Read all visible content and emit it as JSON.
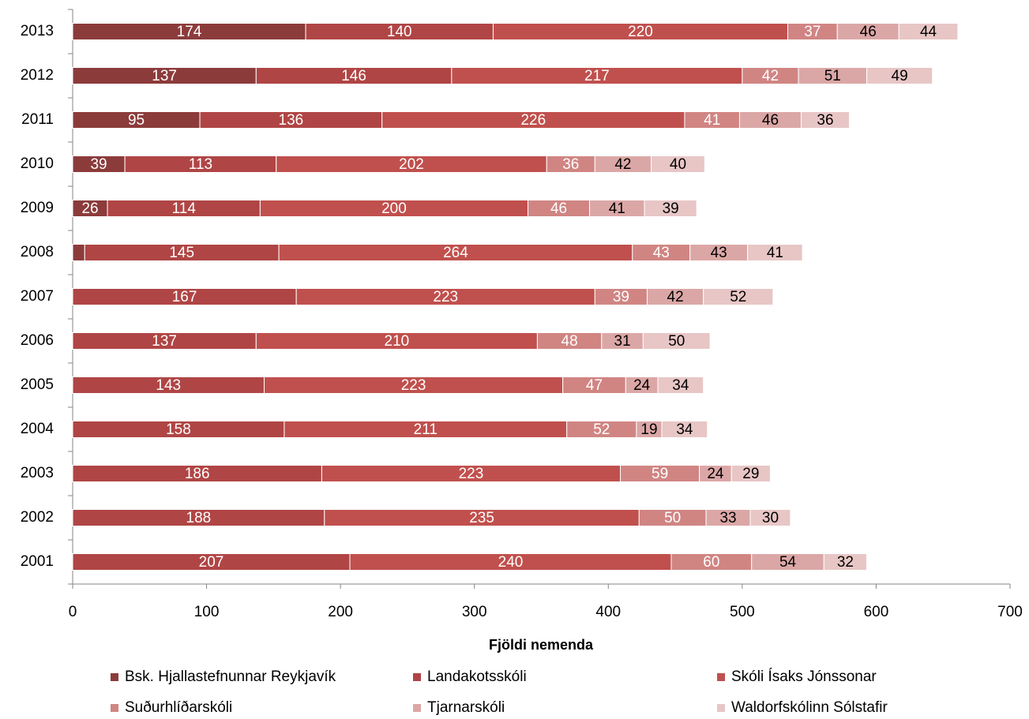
{
  "chart_data": {
    "type": "stacked_bar_horizontal",
    "x_label": "Fjöldi nemenda",
    "categories": [
      "2001",
      "2002",
      "2003",
      "2004",
      "2005",
      "2006",
      "2007",
      "2008",
      "2009",
      "2010",
      "2011",
      "2012",
      "2013"
    ],
    "series": [
      {
        "name": "Bsk. Hjallastefnunnar Reykjavík",
        "color": "#8c3b3b",
        "label_color": "#ffffff",
        "values": [
          null,
          null,
          null,
          null,
          null,
          null,
          null,
          9,
          26,
          39,
          95,
          137,
          174
        ],
        "value_labels": [
          null,
          null,
          null,
          null,
          null,
          null,
          null,
          null,
          "26",
          "39",
          "95",
          "137",
          "174"
        ]
      },
      {
        "name": "Landakotsskóli",
        "color": "#b04545",
        "label_color": "#ffffff",
        "values": [
          207,
          188,
          186,
          158,
          143,
          137,
          167,
          145,
          114,
          113,
          136,
          146,
          140
        ]
      },
      {
        "name": "Skóli Ísaks Jónssonar",
        "color": "#c0504d",
        "label_color": "#ffffff",
        "values": [
          240,
          235,
          223,
          211,
          223,
          210,
          223,
          264,
          200,
          202,
          226,
          217,
          220
        ]
      },
      {
        "name": "Suðurhlíðarskóli",
        "color": "#d08583",
        "label_color": "#ffffff",
        "values": [
          60,
          50,
          59,
          52,
          47,
          48,
          39,
          43,
          46,
          36,
          41,
          42,
          37
        ]
      },
      {
        "name": "Tjarnarskóli",
        "color": "#dba7a6",
        "label_color": "#000000",
        "values": [
          54,
          33,
          24,
          19,
          24,
          31,
          42,
          43,
          41,
          42,
          46,
          51,
          46
        ]
      },
      {
        "name": "Waldorfskólinn Sólstafir",
        "color": "#e8c6c6",
        "label_color": "#000000",
        "values": [
          32,
          30,
          29,
          34,
          34,
          50,
          52,
          41,
          39,
          40,
          36,
          49,
          44
        ]
      }
    ],
    "xlim": [
      0,
      700
    ],
    "xticks": [
      0,
      100,
      200,
      300,
      400,
      500,
      600,
      700
    ]
  }
}
